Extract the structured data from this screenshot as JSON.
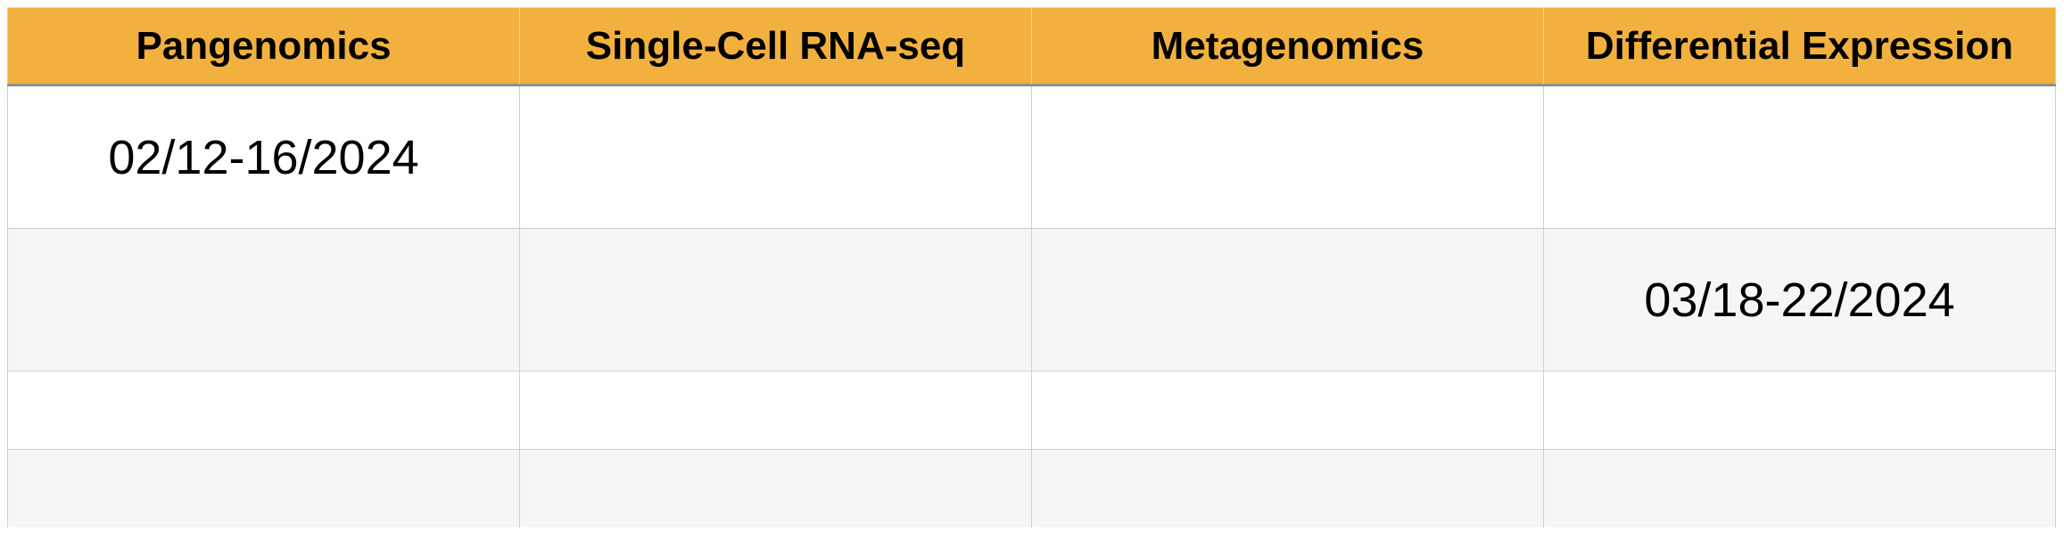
{
  "table": {
    "headers": [
      "Pangenomics",
      "Single-Cell RNA-seq",
      "Metagenomics",
      "Differential Expression"
    ],
    "rows": [
      [
        "02/12-16/2024",
        "",
        "",
        ""
      ],
      [
        "",
        "",
        "",
        "03/18-22/2024"
      ],
      [
        "",
        "",
        "",
        ""
      ],
      [
        "",
        "",
        "",
        ""
      ]
    ]
  },
  "colors": {
    "header_background": "#f2b13e",
    "stripe_background": "#f6f6f5",
    "grid_line": "#cfcfcf"
  }
}
